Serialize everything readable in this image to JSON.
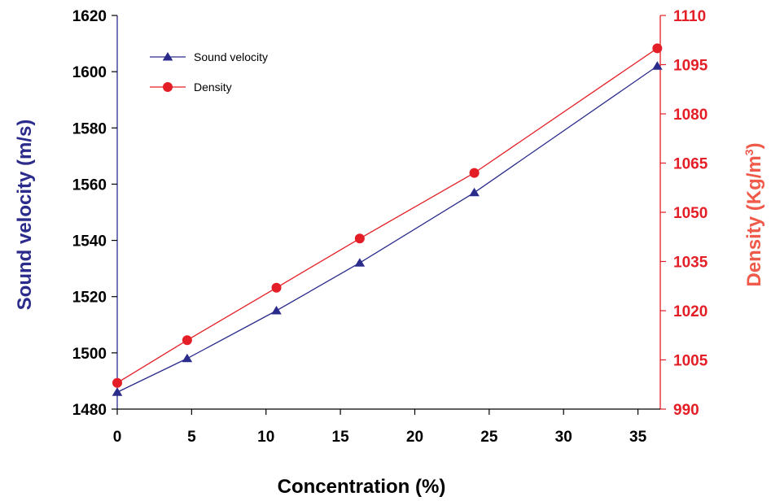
{
  "chart_data": {
    "type": "line",
    "xlabel": "Concentration (%)",
    "ylabel_left": "Sound velocity (m/s)",
    "ylabel_right_main": "Density (Kg/m",
    "ylabel_right_sup": "3",
    "ylabel_right_close": ")",
    "xlim": [
      0,
      36.5
    ],
    "ylim_left": [
      1480,
      1620
    ],
    "ylim_right": [
      990,
      1110
    ],
    "x_ticks": [
      "0",
      "5",
      "10",
      "15",
      "20",
      "25",
      "30",
      "35"
    ],
    "y_left_ticks": [
      "1480",
      "1500",
      "1520",
      "1540",
      "1560",
      "1580",
      "1600",
      "1620"
    ],
    "y_right_ticks": [
      "990",
      "1005",
      "1020",
      "1035",
      "1050",
      "1065",
      "1080",
      "1095",
      "1110"
    ],
    "legend_position": "top-left",
    "colors": {
      "sound": "#2b2b8c",
      "density": "#e41e26",
      "right_title": "#f05a4a",
      "axis_left": "#000000"
    },
    "series": [
      {
        "name": "Sound velocity",
        "axis": "left",
        "marker": "triangle",
        "x": [
          0,
          4.7,
          10.7,
          16.3,
          24,
          36.3
        ],
        "values": [
          1486,
          1498,
          1515,
          1532,
          1557,
          1602
        ]
      },
      {
        "name": "Density",
        "axis": "right",
        "marker": "circle",
        "x": [
          0,
          4.7,
          10.7,
          16.3,
          24,
          36.3
        ],
        "values": [
          998,
          1011,
          1027,
          1042,
          1062,
          1100
        ]
      }
    ]
  }
}
